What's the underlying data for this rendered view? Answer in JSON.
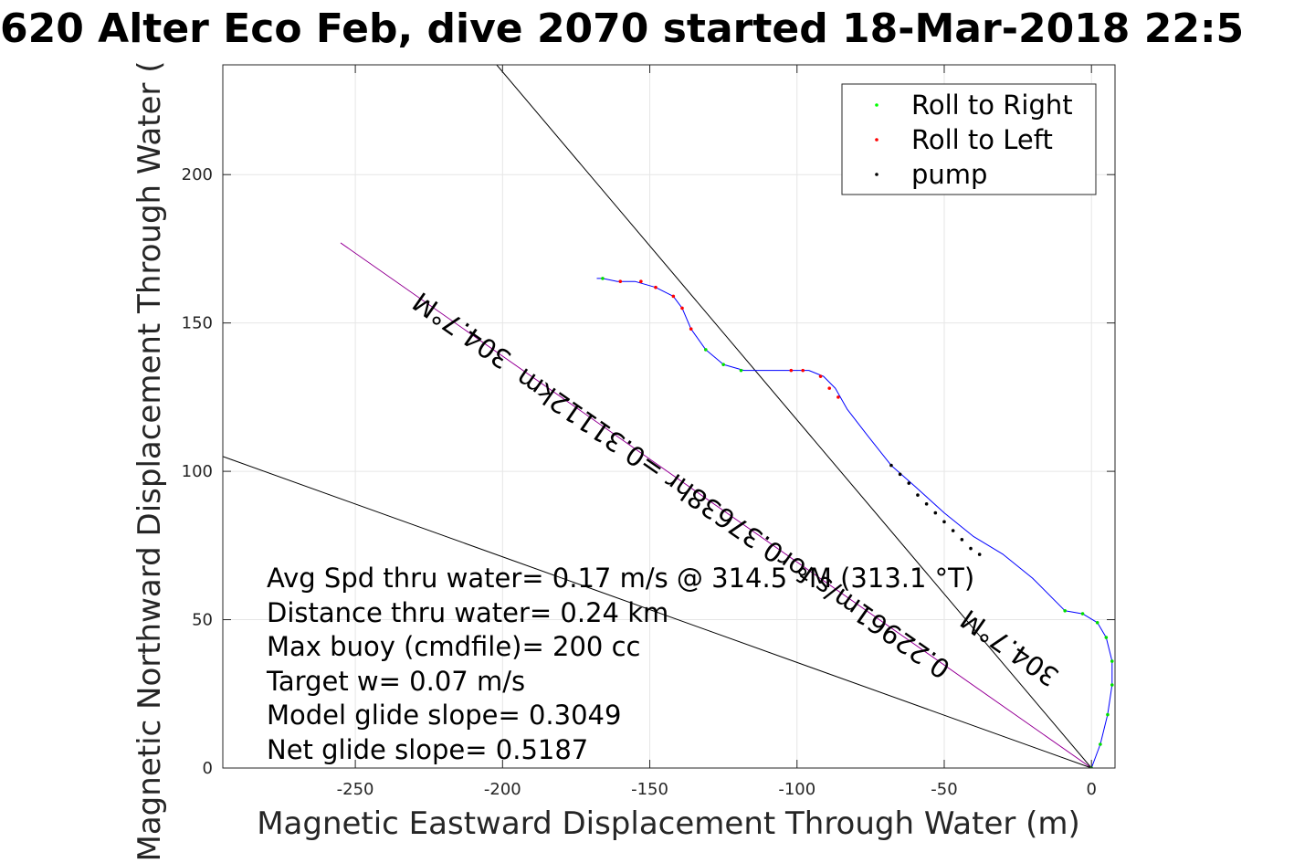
{
  "chart_data": {
    "type": "scatter",
    "title": "620 Alter Eco Feb, dive 2070 started 18-Mar-2018 22:5",
    "xlabel": "Magnetic Eastward Displacement Through Water (m)",
    "ylabel": "Magnetic Northward Displacement Through Water (",
    "xlim": [
      -295,
      8
    ],
    "ylim": [
      0,
      237
    ],
    "xticks": [
      -250,
      -200,
      -150,
      -100,
      -50,
      0
    ],
    "yticks": [
      0,
      50,
      100,
      150,
      200
    ],
    "grid": true,
    "legend_position": "top-right",
    "legend": [
      {
        "label": "Roll to Right",
        "color": "#00ff00"
      },
      {
        "label": "Roll to Left",
        "color": "#ff0000"
      },
      {
        "label": "pump",
        "color": "#000000"
      }
    ],
    "track": {
      "color": "#0000ff",
      "points": [
        [
          0,
          0
        ],
        [
          3,
          8
        ],
        [
          5.5,
          18
        ],
        [
          7,
          28
        ],
        [
          7,
          36
        ],
        [
          5,
          44
        ],
        [
          2,
          49
        ],
        [
          -3,
          52
        ],
        [
          -9,
          53
        ],
        [
          -20,
          64
        ],
        [
          -30,
          72
        ],
        [
          -40,
          78
        ],
        [
          -50,
          86
        ],
        [
          -60,
          95
        ],
        [
          -68,
          102
        ],
        [
          -76,
          112
        ],
        [
          -83,
          121
        ],
        [
          -87,
          128
        ],
        [
          -91,
          132
        ],
        [
          -96,
          134
        ],
        [
          -102,
          134
        ],
        [
          -110,
          134
        ],
        [
          -118,
          134
        ],
        [
          -125,
          136
        ],
        [
          -131,
          141
        ],
        [
          -136,
          148
        ],
        [
          -139,
          155
        ],
        [
          -142,
          159
        ],
        [
          -148,
          162
        ],
        [
          -155,
          164
        ],
        [
          -161,
          164
        ],
        [
          -166,
          165
        ],
        [
          -168,
          165
        ]
      ]
    },
    "markers": {
      "roll_right": [
        [
          0,
          0
        ],
        [
          3,
          8
        ],
        [
          5.5,
          18
        ],
        [
          7,
          28
        ],
        [
          7,
          36
        ],
        [
          5,
          44
        ],
        [
          2,
          49
        ],
        [
          -3,
          52
        ],
        [
          -9,
          53
        ],
        [
          -125,
          136
        ],
        [
          -131,
          141
        ],
        [
          -119,
          134
        ],
        [
          -166,
          165
        ]
      ],
      "roll_left": [
        [
          -86,
          125
        ],
        [
          -89,
          128
        ],
        [
          -92,
          132
        ],
        [
          -98,
          134
        ],
        [
          -102,
          134
        ],
        [
          -136,
          148
        ],
        [
          -139,
          155
        ],
        [
          -142,
          159
        ],
        [
          -148,
          162
        ],
        [
          -153,
          164
        ],
        [
          -160,
          164
        ]
      ],
      "pump": [
        [
          -68,
          102
        ],
        [
          -65,
          99
        ],
        [
          -62,
          96
        ],
        [
          -59,
          92
        ],
        [
          -56,
          89
        ],
        [
          -53,
          86
        ],
        [
          -50,
          83
        ],
        [
          -47,
          80
        ],
        [
          -44,
          77
        ],
        [
          -41,
          74
        ],
        [
          -38,
          72
        ]
      ]
    },
    "lines": [
      {
        "from": [
          0,
          0
        ],
        "to": [
          -255,
          177
        ],
        "color": "#cc00cc",
        "label": "304.7°M"
      },
      {
        "from": [
          0,
          0
        ],
        "to": [
          -202,
          237
        ],
        "color": "#000000"
      },
      {
        "from": [
          0,
          0
        ],
        "to": [
          -295,
          105
        ],
        "color": "#000000"
      }
    ],
    "annotations": [
      {
        "text": "304.7°M",
        "x": -212,
        "y": 150,
        "angle": 34.8
      },
      {
        "text": "0.22961m/s for0.37638hr =0.31112km",
        "x": -120,
        "y": 85,
        "angle": 34.8
      },
      {
        "text": "304.7°M",
        "x": -26,
        "y": 43,
        "angle": 34.8
      }
    ],
    "stats": [
      "Avg Spd thru water=  0.17 m/s @ 314.5 °M (313.1 °T)",
      "Distance thru water=  0.24 km",
      "Max buoy (cmdfile)= 200 cc",
      "Target w= 0.07 m/s",
      "Model glide slope= 0.3049",
      "Net glide slope= 0.5187"
    ]
  }
}
